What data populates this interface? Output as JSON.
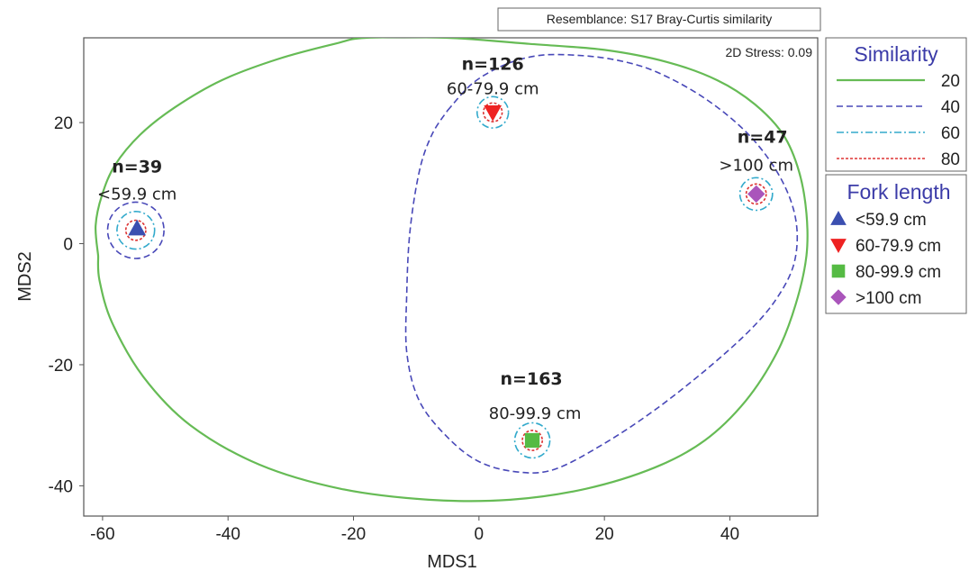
{
  "chart_data": {
    "type": "scatter",
    "title": "",
    "resemblance": "Resemblance: S17 Bray-Curtis similarity",
    "stress": "2D Stress: 0.09",
    "xlabel": "MDS1",
    "ylabel": "MDS2",
    "xlim": [
      -63,
      54
    ],
    "ylim": [
      -45,
      34
    ],
    "x_ticks": [
      -60,
      -40,
      -20,
      0,
      20,
      40
    ],
    "y_ticks": [
      -40,
      -20,
      0,
      20
    ],
    "grid": false,
    "points": [
      {
        "group": "<59.9 cm",
        "x": -54.5,
        "y": 2.5,
        "n_label": "n=39",
        "range_label": "<59.9 cm"
      },
      {
        "group": "60-79.9 cm",
        "x": 2.2,
        "y": 21.7,
        "n_label": "n=126",
        "range_label": "60-79.9 cm"
      },
      {
        "group": "80-99.9 cm",
        "x": 8.5,
        "y": -32.5,
        "n_label": "n=163",
        "range_label": "80-99.9 cm"
      },
      {
        "group": ">100 cm",
        "x": 44.2,
        "y": 8.2,
        "n_label": "n=47",
        "range_label": ">100 cm"
      }
    ],
    "similarity_contours": [
      {
        "level": "20",
        "description": "one outline enclosing all four groups",
        "outline": [
          [
            -60.7,
            -2
          ],
          [
            -61.1,
            3
          ],
          [
            -60.1,
            8
          ],
          [
            -58,
            13
          ],
          [
            -54,
            18
          ],
          [
            -48.5,
            22.5
          ],
          [
            -41,
            27
          ],
          [
            -32,
            30.5
          ],
          [
            -23,
            33
          ],
          [
            -18,
            34
          ],
          [
            -5,
            34
          ],
          [
            8,
            33
          ],
          [
            20,
            32
          ],
          [
            30,
            30
          ],
          [
            38,
            27
          ],
          [
            44,
            23
          ],
          [
            48.5,
            18
          ],
          [
            51,
            12
          ],
          [
            52.2,
            5
          ],
          [
            52.2,
            -2
          ],
          [
            50.5,
            -10
          ],
          [
            47.5,
            -18
          ],
          [
            42.5,
            -26
          ],
          [
            36,
            -32.5
          ],
          [
            28,
            -37
          ],
          [
            17,
            -40.5
          ],
          [
            5,
            -42.3
          ],
          [
            -8,
            -42.3
          ],
          [
            -22,
            -40.5
          ],
          [
            -35,
            -36.5
          ],
          [
            -46,
            -30
          ],
          [
            -53.5,
            -22
          ],
          [
            -58.5,
            -13
          ],
          [
            -60.5,
            -6
          ],
          [
            -60.7,
            -2
          ]
        ]
      },
      {
        "level": "40",
        "description": "outline around <59.9 cm group",
        "circle": {
          "x": -54.7,
          "y": 2.2,
          "r": 4.5
        }
      },
      {
        "level": "40",
        "description": "outline joining 60-79.9, 80-99.9 and >100 cm groups",
        "outline": [
          [
            -5,
            22
          ],
          [
            -1,
            26.5
          ],
          [
            4,
            29.5
          ],
          [
            9,
            31
          ],
          [
            14,
            31.2
          ],
          [
            21,
            30.5
          ],
          [
            28,
            28.5
          ],
          [
            36,
            24
          ],
          [
            43,
            18
          ],
          [
            48,
            11
          ],
          [
            50.5,
            4
          ],
          [
            50.3,
            -3
          ],
          [
            47.5,
            -9
          ],
          [
            43,
            -14.5
          ],
          [
            36,
            -21
          ],
          [
            28,
            -27.5
          ],
          [
            20,
            -33
          ],
          [
            12,
            -37.3
          ],
          [
            6,
            -37.7
          ],
          [
            0,
            -36
          ],
          [
            -5,
            -32
          ],
          [
            -9.5,
            -26
          ],
          [
            -11.5,
            -18
          ],
          [
            -11.5,
            -8
          ],
          [
            -11,
            2
          ],
          [
            -9.5,
            12
          ],
          [
            -7.5,
            18
          ],
          [
            -5,
            22
          ]
        ]
      },
      {
        "level": "60",
        "description": "circles around each group",
        "circles": [
          {
            "x": -54.7,
            "y": 2.2,
            "r": 3.0
          },
          {
            "x": 2.2,
            "y": 21.7,
            "r": 2.5
          },
          {
            "x": 8.5,
            "y": -32.5,
            "r": 2.8
          },
          {
            "x": 44.2,
            "y": 8.2,
            "r": 2.6
          }
        ]
      },
      {
        "level": "80",
        "description": "circles around each group",
        "circles": [
          {
            "x": -54.7,
            "y": 2.2,
            "r": 1.6
          },
          {
            "x": 2.2,
            "y": 21.7,
            "r": 1.5
          },
          {
            "x": 8.5,
            "y": -32.5,
            "r": 1.6
          },
          {
            "x": 44.2,
            "y": 8.2,
            "r": 1.6
          }
        ]
      }
    ],
    "legend_similarity": {
      "title": "Similarity",
      "placement": "right-top",
      "entries": [
        {
          "label": "20",
          "color": "#66bb55",
          "style": "solid"
        },
        {
          "label": "40",
          "color": "#4848b8",
          "style": "dashed"
        },
        {
          "label": "60",
          "color": "#33aacc",
          "style": "dashdot"
        },
        {
          "label": "80",
          "color": "#dd3333",
          "style": "dotted"
        }
      ]
    },
    "legend_fork": {
      "title": "Fork length",
      "placement": "right-middle",
      "entries": [
        {
          "label": "<59.9 cm",
          "color": "#3b4fb0",
          "marker": "triangle-up"
        },
        {
          "label": "60-79.9 cm",
          "color": "#ee2222",
          "marker": "triangle-down"
        },
        {
          "label": "80-99.9 cm",
          "color": "#55bb44",
          "marker": "square"
        },
        {
          "label": ">100 cm",
          "color": "#aa55bb",
          "marker": "diamond"
        }
      ]
    }
  }
}
